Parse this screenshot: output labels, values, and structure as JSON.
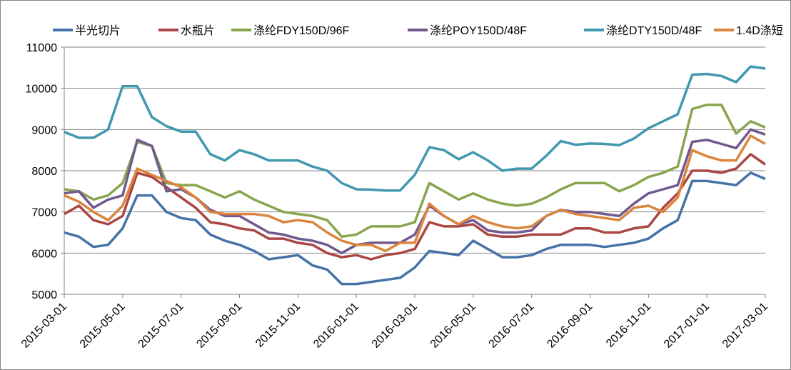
{
  "chart_data": {
    "type": "line",
    "title": "",
    "xlabel": "",
    "ylabel": "",
    "ylim": [
      5000,
      11000
    ],
    "yticks": [
      5000,
      6000,
      7000,
      8000,
      9000,
      10000,
      11000
    ],
    "ytick_labels": [
      "5000",
      "6000",
      "7000",
      "8000",
      "9000",
      "10000",
      "11000"
    ],
    "grid": true,
    "legend_position": "top",
    "xtick_labels": [
      "2015-03-01",
      "2015-05-01",
      "2015-07-01",
      "2015-09-01",
      "2015-11-01",
      "2016-01-01",
      "2016-03-01",
      "2016-05-01",
      "2016-07-01",
      "2016-09-01",
      "2016-11-01",
      "2017-01-01",
      "2017-03-01"
    ],
    "x": [
      "2015-03-01",
      "2015-03-16",
      "2015-04-01",
      "2015-04-16",
      "2015-05-01",
      "2015-05-16",
      "2015-06-01",
      "2015-06-16",
      "2015-07-01",
      "2015-07-16",
      "2015-08-01",
      "2015-08-16",
      "2015-09-01",
      "2015-09-16",
      "2015-10-01",
      "2015-10-16",
      "2015-11-01",
      "2015-11-16",
      "2015-12-01",
      "2015-12-16",
      "2016-01-01",
      "2016-01-16",
      "2016-02-01",
      "2016-02-16",
      "2016-03-01",
      "2016-03-16",
      "2016-04-01",
      "2016-04-16",
      "2016-05-01",
      "2016-05-16",
      "2016-06-01",
      "2016-06-16",
      "2016-07-01",
      "2016-07-16",
      "2016-08-01",
      "2016-08-16",
      "2016-09-01",
      "2016-09-16",
      "2016-10-01",
      "2016-10-16",
      "2016-11-01",
      "2016-11-16",
      "2016-12-01",
      "2016-12-16",
      "2017-01-01",
      "2017-01-16",
      "2017-02-01",
      "2017-02-16",
      "2017-03-01"
    ],
    "series": [
      {
        "name": "半光切片",
        "color": "#4572A7",
        "values": [
          6500,
          6400,
          6150,
          6200,
          6600,
          7400,
          7400,
          7000,
          6850,
          6800,
          6450,
          6300,
          6200,
          6050,
          5850,
          5900,
          5950,
          5700,
          5600,
          5250,
          5250,
          5300,
          5350,
          5400,
          5650,
          6050,
          6000,
          5950,
          6300,
          6100,
          5900,
          5900,
          5950,
          6100,
          6200,
          6200,
          6200,
          6150,
          6200,
          6250,
          6350,
          6600,
          6800,
          7750,
          7750,
          7700,
          7650,
          7950,
          7800
        ]
      },
      {
        "name": "水瓶片",
        "color": "#AA4643",
        "values": [
          6950,
          7150,
          6800,
          6700,
          6900,
          7950,
          7850,
          7600,
          7350,
          7100,
          6750,
          6700,
          6600,
          6550,
          6350,
          6350,
          6250,
          6200,
          6000,
          5900,
          5950,
          5850,
          5950,
          6000,
          6100,
          6750,
          6650,
          6650,
          6700,
          6450,
          6400,
          6400,
          6450,
          6450,
          6450,
          6600,
          6600,
          6500,
          6500,
          6600,
          6650,
          7100,
          7450,
          8000,
          8000,
          7950,
          8050,
          8400,
          8150
        ]
      },
      {
        "name": "涤纶FDY150D/96F",
        "color": "#89A54E",
        "values": [
          7550,
          7500,
          7300,
          7400,
          7700,
          8700,
          8600,
          7700,
          7650,
          7650,
          7500,
          7350,
          7500,
          7300,
          7150,
          7000,
          6950,
          6900,
          6800,
          6400,
          6450,
          6650,
          6650,
          6650,
          6750,
          7700,
          7500,
          7300,
          7450,
          7300,
          7200,
          7150,
          7200,
          7350,
          7550,
          7700,
          7700,
          7700,
          7500,
          7650,
          7850,
          7950,
          8100,
          9500,
          9600,
          9600,
          8900,
          9200,
          9050
        ]
      },
      {
        "name": "涤纶POY150D/48F",
        "color": "#71588F",
        "values": [
          7450,
          7500,
          7100,
          7300,
          7400,
          8750,
          8600,
          7500,
          7550,
          7350,
          7050,
          6900,
          6900,
          6700,
          6500,
          6450,
          6350,
          6300,
          6200,
          6000,
          6200,
          6250,
          6250,
          6250,
          6450,
          7150,
          6900,
          6700,
          6800,
          6550,
          6500,
          6500,
          6550,
          6900,
          7050,
          7000,
          7000,
          6950,
          6900,
          7200,
          7450,
          7550,
          7650,
          8700,
          8750,
          8650,
          8550,
          9000,
          8880
        ]
      },
      {
        "name": "涤纶DTY150D/48F",
        "color": "#4198AF",
        "values": [
          8940,
          8800,
          8800,
          9000,
          10050,
          10050,
          9300,
          9080,
          8950,
          8950,
          8400,
          8250,
          8500,
          8400,
          8250,
          8250,
          8250,
          8100,
          8000,
          7700,
          7550,
          7540,
          7520,
          7520,
          7900,
          8570,
          8500,
          8280,
          8450,
          8250,
          8000,
          8050,
          8050,
          8360,
          8720,
          8630,
          8660,
          8650,
          8620,
          8780,
          9030,
          9200,
          9370,
          10330,
          10350,
          10300,
          10150,
          10530,
          10480
        ]
      },
      {
        "name": "1.4D涤短",
        "color": "#DB843D",
        "values": [
          7400,
          7250,
          7000,
          6800,
          7150,
          8050,
          7900,
          7750,
          7600,
          7350,
          7000,
          6950,
          6950,
          6950,
          6900,
          6750,
          6800,
          6750,
          6500,
          6300,
          6200,
          6200,
          6050,
          6250,
          6250,
          7200,
          6900,
          6700,
          6900,
          6750,
          6650,
          6600,
          6650,
          6900,
          7050,
          6950,
          6900,
          6850,
          6800,
          7100,
          7150,
          7000,
          7350,
          8500,
          8350,
          8250,
          8250,
          8850,
          8650
        ]
      }
    ]
  }
}
